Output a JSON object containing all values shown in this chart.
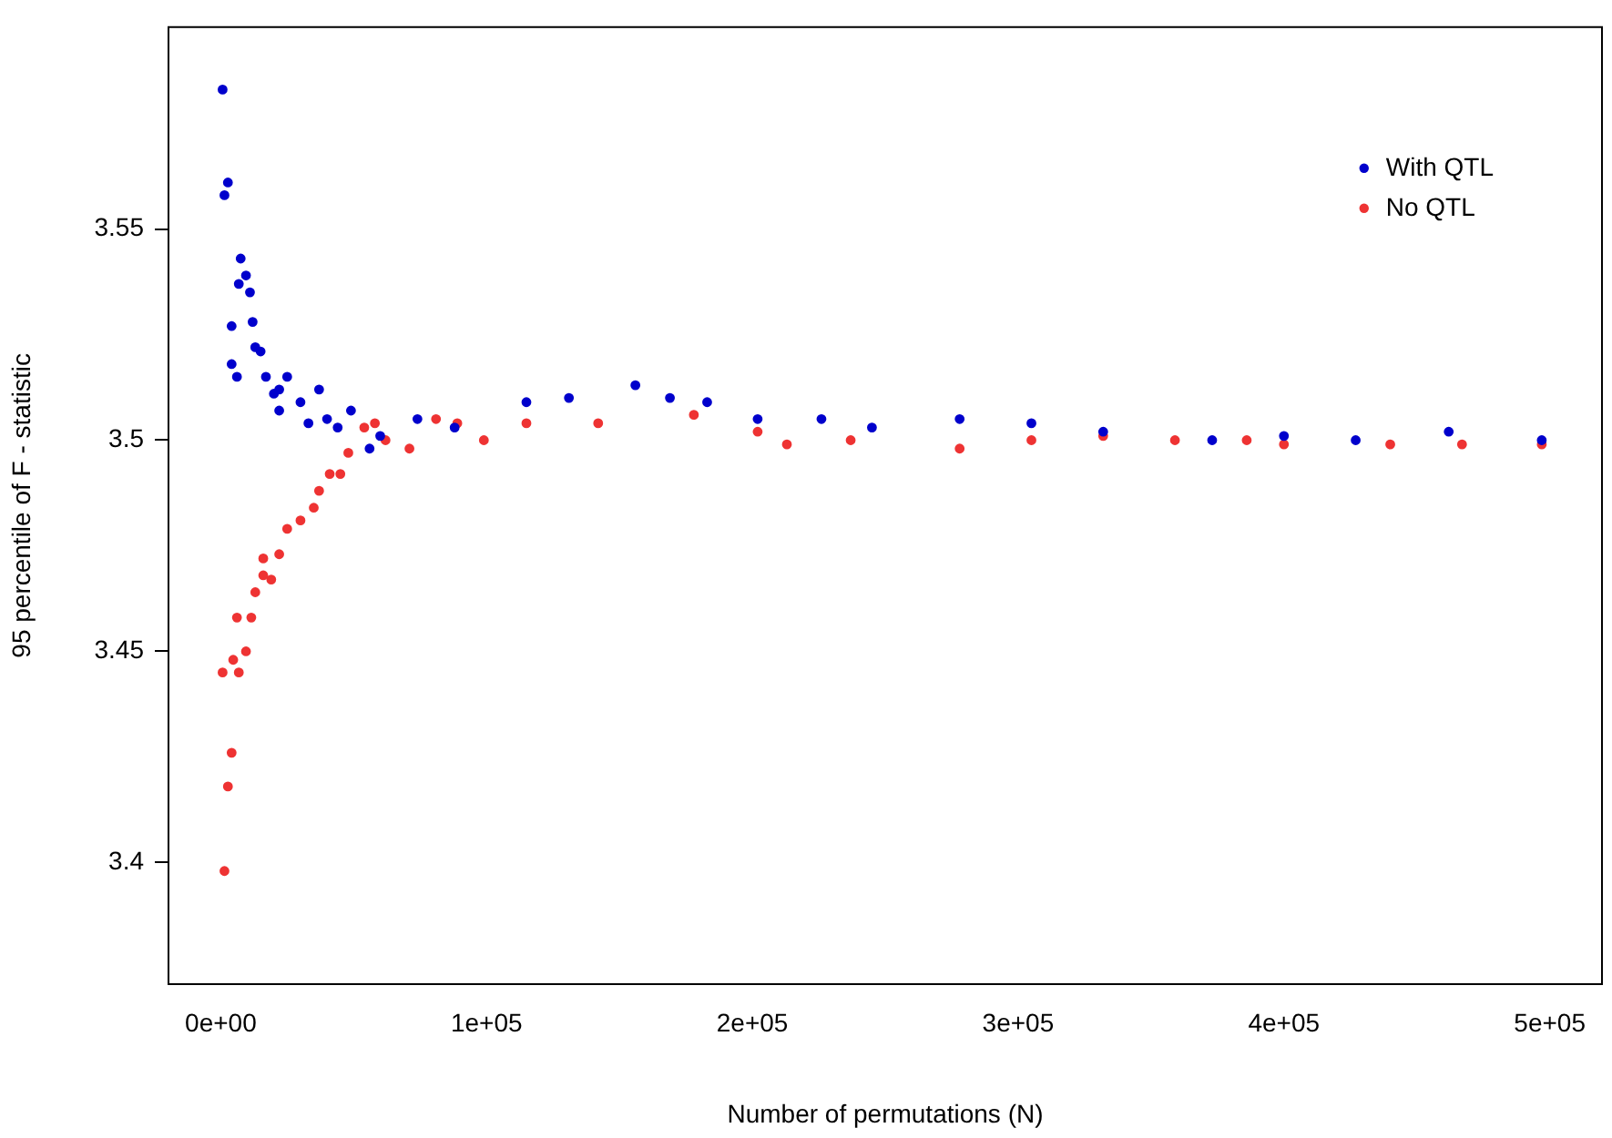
{
  "chart_data": {
    "type": "scatter",
    "xlabel": "Number of permutations (N)",
    "ylabel": "95 percentile of F - statistic",
    "xlim": [
      -20000,
      520000
    ],
    "ylim": [
      3.371,
      3.598
    ],
    "xticks": [
      {
        "value": 0,
        "label": "0e+00"
      },
      {
        "value": 100000,
        "label": "1e+05"
      },
      {
        "value": 200000,
        "label": "2e+05"
      },
      {
        "value": 300000,
        "label": "3e+05"
      },
      {
        "value": 400000,
        "label": "4e+05"
      },
      {
        "value": 500000,
        "label": "5e+05"
      }
    ],
    "yticks": [
      3.4,
      3.45,
      3.5,
      3.55
    ],
    "legend": "top right",
    "marker": "circle",
    "grid": false,
    "series": [
      {
        "name": "With QTL",
        "color": "#0000cc",
        "x": [
          700,
          1400,
          2700,
          4100,
          4100,
          6100,
          6800,
          7500,
          9500,
          11000,
          12000,
          13000,
          15000,
          17000,
          20000,
          22000,
          22000,
          25000,
          30000,
          33000,
          37000,
          40000,
          44000,
          49000,
          56000,
          60000,
          74000,
          88000,
          115000,
          131000,
          156000,
          169000,
          183000,
          202000,
          226000,
          245000,
          278000,
          305000,
          332000,
          373000,
          400000,
          427000,
          462000,
          497000
        ],
        "values": [
          3.583,
          3.558,
          3.561,
          3.527,
          3.518,
          3.515,
          3.537,
          3.543,
          3.539,
          3.535,
          3.528,
          3.522,
          3.521,
          3.515,
          3.511,
          3.512,
          3.507,
          3.515,
          3.509,
          3.504,
          3.512,
          3.505,
          3.503,
          3.507,
          3.498,
          3.501,
          3.505,
          3.503,
          3.509,
          3.51,
          3.513,
          3.51,
          3.509,
          3.505,
          3.505,
          3.503,
          3.505,
          3.504,
          3.502,
          3.5,
          3.501,
          3.5,
          3.502,
          3.5
        ]
      },
      {
        "name": "No QTL",
        "color": "#ee3333",
        "x": [
          700,
          1400,
          2700,
          4100,
          4700,
          6100,
          6800,
          9500,
          11500,
          13000,
          16000,
          16000,
          19000,
          22000,
          25000,
          30000,
          35000,
          37000,
          41000,
          45000,
          48000,
          54000,
          58000,
          62000,
          71000,
          81000,
          89000,
          99000,
          115000,
          142000,
          178000,
          202000,
          213000,
          237000,
          278000,
          305000,
          332000,
          359000,
          386000,
          400000,
          440000,
          467000,
          497000
        ],
        "values": [
          3.445,
          3.398,
          3.418,
          3.426,
          3.448,
          3.458,
          3.445,
          3.45,
          3.458,
          3.464,
          3.468,
          3.472,
          3.467,
          3.473,
          3.479,
          3.481,
          3.484,
          3.488,
          3.492,
          3.492,
          3.497,
          3.503,
          3.504,
          3.5,
          3.498,
          3.505,
          3.504,
          3.5,
          3.504,
          3.504,
          3.506,
          3.502,
          3.499,
          3.5,
          3.498,
          3.5,
          3.501,
          3.5,
          3.5,
          3.499,
          3.499,
          3.499,
          3.499
        ]
      }
    ]
  }
}
